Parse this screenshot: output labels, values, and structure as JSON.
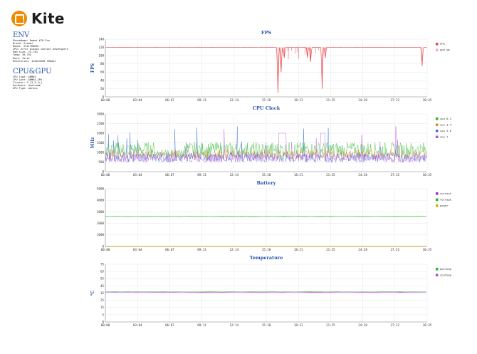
{
  "logo": {
    "text": "Kite",
    "color": "#f08a00"
  },
  "env": {
    "heading": "ENV",
    "lines": [
      "PhoneName: Redmi K70 Pro",
      "Brand: Xiaomi",
      "Model: 23117RK66C",
      "CPU: error please contact developers",
      "Ram size: 23.74G",
      "Temp: 39.75G",
      "Root: false",
      "Resolution: 1440x3200 390dpi"
    ]
  },
  "cpugpu": {
    "heading": "CPU&GPU",
    "lines": [
      "CPU Type: ARM64",
      "CPU Core: ARM64_CPU",
      "Cluster: 3 [3-3-2+]",
      "Hardware: Qualcomm",
      "GPU Type: adreno"
    ]
  },
  "chart_data": [
    {
      "type": "line",
      "title": "FPS",
      "ylabel": "FPS",
      "ylim": [
        0,
        140
      ],
      "yticks": [
        "140",
        "120",
        "100",
        "80",
        "60",
        "40",
        "20",
        "0"
      ],
      "xticks": [
        "00:00",
        "03:04",
        "06:07",
        "09:11",
        "12:14",
        "15:18",
        "18:21",
        "21:25",
        "24:28",
        "27:32",
        "30:35"
      ],
      "series": [
        {
          "name": "FPS",
          "color": "#e8464e",
          "baseline": 120
        },
        {
          "name": "GPU VD",
          "color": "#f1b2b5"
        }
      ],
      "dips": [
        {
          "t": 16.4,
          "v": 10
        },
        {
          "t": 16.7,
          "v": 60
        },
        {
          "t": 17.0,
          "v": 95
        },
        {
          "t": 19.2,
          "v": 95
        },
        {
          "t": 19.5,
          "v": 85
        },
        {
          "t": 20.6,
          "v": 20
        },
        {
          "t": 20.9,
          "v": 95
        },
        {
          "t": 30.1,
          "v": 75
        }
      ]
    },
    {
      "type": "line",
      "title": "CPU Clock",
      "ylabel": "MHz",
      "ylim": [
        0,
        3000
      ],
      "yticks": [
        "3000",
        "2500",
        "2000",
        "1500",
        "1000",
        "500",
        "0"
      ],
      "xticks": [
        "00:00",
        "03:04",
        "06:07",
        "09:11",
        "12:14",
        "15:18",
        "18:21",
        "21:25",
        "24:28",
        "27:32",
        "30:35"
      ],
      "series": [
        {
          "name": "cpu 0-2",
          "color": "#2ab52a",
          "mean": 1150,
          "spread": 380
        },
        {
          "name": "cpu 3-4",
          "color": "#e08a1e",
          "mean": 900,
          "spread": 250
        },
        {
          "name": "cpu 5-6",
          "color": "#3a6fd8",
          "mean": 750,
          "spread": 260
        },
        {
          "name": "cpu 7",
          "color": "#b34fd6",
          "mean": 700,
          "spread": 220
        }
      ]
    },
    {
      "type": "line",
      "title": "Battery",
      "ylabel": "",
      "ylim": [
        0,
        5000
      ],
      "yticks": [
        "5000",
        "4000",
        "3000",
        "2000",
        "1000",
        "0"
      ],
      "xticks": [
        "00:00",
        "03:04",
        "06:07",
        "09:11",
        "12:14",
        "15:18",
        "18:21",
        "21:25",
        "24:28",
        "27:32",
        "30:35"
      ],
      "series": [
        {
          "name": "current",
          "color": "#9b2fc4",
          "value": 0
        },
        {
          "name": "voltage",
          "color": "#2ab52a",
          "value": 2600
        },
        {
          "name": "power",
          "color": "#c8b400",
          "value": 0
        }
      ]
    },
    {
      "type": "line",
      "title": "Temperature",
      "ylabel": "°C",
      "ylim": [
        0,
        75
      ],
      "yticks": [
        "75",
        "65",
        "55",
        "45",
        "35",
        "25",
        "15",
        "5",
        "0"
      ],
      "xticks": [
        "00:00",
        "03:04",
        "06:07",
        "09:11",
        "12:14",
        "15:18",
        "18:21",
        "21:25",
        "24:28",
        "27:32",
        "30:35"
      ],
      "series": [
        {
          "name": "batTemp",
          "color": "#2ab52a",
          "value": 39
        },
        {
          "name": "cpuTemp",
          "color": "#b34fd6",
          "value": 38.7
        }
      ]
    }
  ]
}
